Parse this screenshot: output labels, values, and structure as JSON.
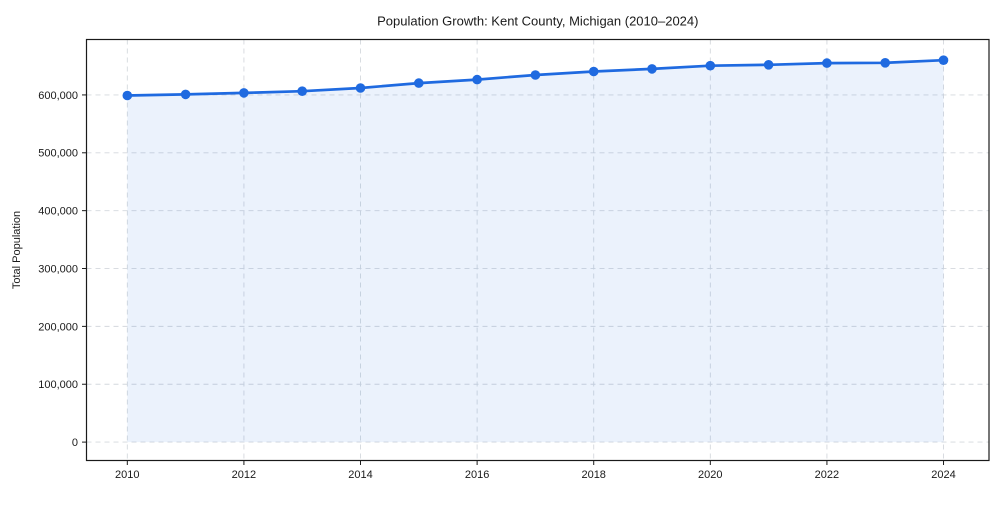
{
  "chart_data": {
    "type": "line",
    "title": "Population Growth: Kent County, Michigan (2010–2024)",
    "xlabel": "",
    "ylabel": "Total Population",
    "x": [
      2010,
      2011,
      2012,
      2013,
      2014,
      2015,
      2016,
      2017,
      2018,
      2019,
      2020,
      2021,
      2022,
      2023,
      2024
    ],
    "values": [
      599000,
      601000,
      603500,
      606500,
      612000,
      620500,
      626500,
      634500,
      640500,
      645000,
      650500,
      652000,
      655000,
      655500,
      660000
    ],
    "xticks": [
      2010,
      2012,
      2014,
      2016,
      2018,
      2020,
      2022,
      2024
    ],
    "yticks": [
      0,
      100000,
      200000,
      300000,
      400000,
      500000,
      600000
    ],
    "xlim": [
      2009.3,
      2024.78
    ],
    "ylim": [
      -31800,
      695800
    ],
    "grid": true,
    "grid_style": "dashed",
    "legend": "none",
    "marker": "circle",
    "area_fill": true,
    "colors": {
      "line": "#1f6ae0",
      "marker": "#1f6ae0",
      "fill": "#1f6ae0",
      "fill_opacity": 0.09,
      "grid": "#d4d8dd",
      "spine": "#1a1a1a",
      "text": "#1a1a1a",
      "background": "#ffffff"
    }
  }
}
